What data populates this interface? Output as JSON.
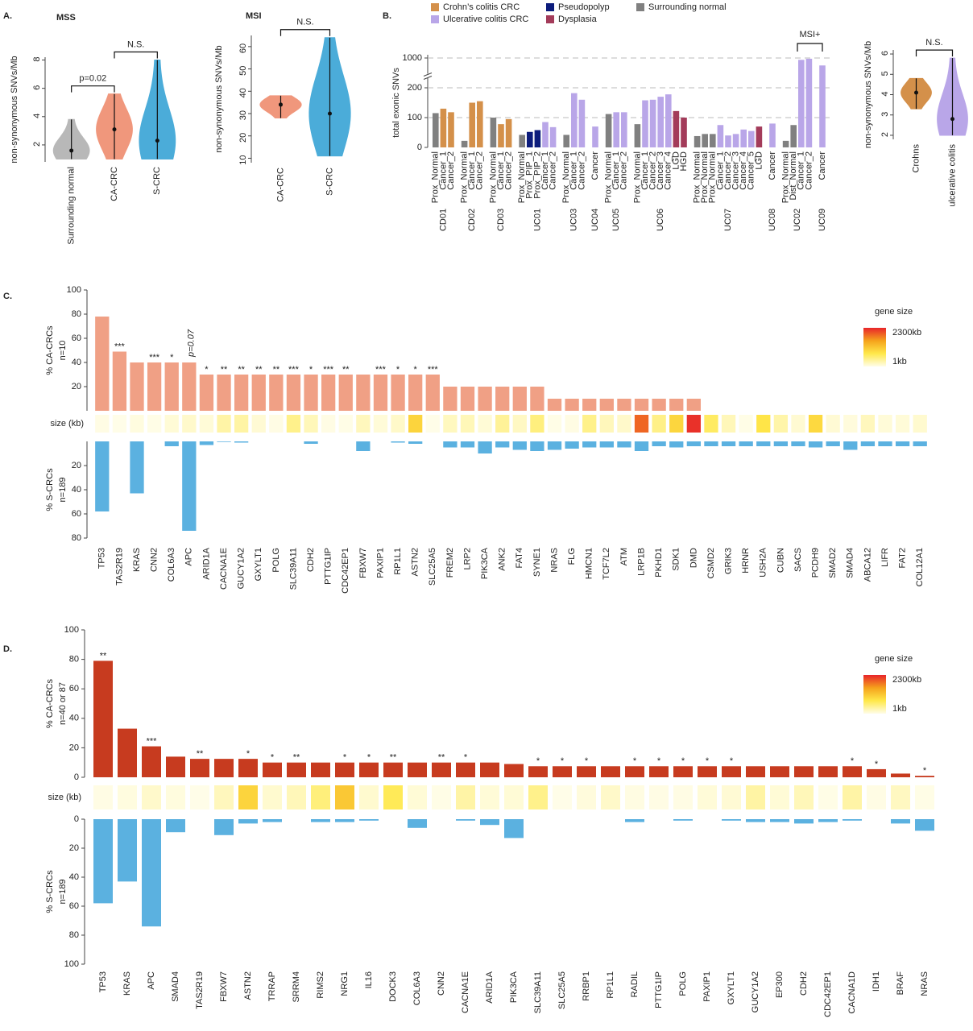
{
  "chart_data": [
    {
      "type": "violin",
      "panel": "A.",
      "title": "MSS",
      "ylabel": "non-synonymous SNVs/Mb",
      "categories": [
        "Surrounding normal",
        "CA-CRC",
        "S-CRC"
      ],
      "colors": [
        "#b8b8b8",
        "#f0977c",
        "#4bacd9"
      ],
      "min": [
        1,
        1,
        1
      ],
      "median": [
        1.6,
        3.1,
        2.3
      ],
      "max": [
        3.8,
        5.6,
        8
      ],
      "ylim": [
        0.8,
        8.2
      ],
      "yticks": [
        2,
        4,
        6,
        8
      ],
      "annotations": [
        {
          "text": "p=0.02",
          "groups": [
            0,
            1
          ]
        },
        {
          "text": "N.S.",
          "groups": [
            1,
            2
          ]
        }
      ]
    },
    {
      "type": "violin",
      "title": "MSI",
      "ylabel": "non-synonymous SNVs/Mb",
      "categories": [
        "CA-CRC",
        "S-CRC"
      ],
      "colors": [
        "#f0977c",
        "#4bacd9"
      ],
      "min": [
        28,
        11
      ],
      "median": [
        34,
        30
      ],
      "max": [
        38,
        64
      ],
      "ylim": [
        8,
        65
      ],
      "yticks": [
        10,
        20,
        30,
        40,
        50,
        60
      ],
      "annotations": [
        {
          "text": "N.S.",
          "groups": [
            0,
            1
          ]
        }
      ]
    },
    {
      "type": "grouped_bar",
      "panel": "B.",
      "ylabel": "total exonic SNVs",
      "ylim": [
        0,
        1000
      ],
      "yticks": [
        0,
        100,
        200,
        1000
      ],
      "axis_break": true,
      "grid": true,
      "legend": [
        {
          "name": "Crohn’s colitis CRC",
          "color": "#d4904a"
        },
        {
          "name": "Ulcerative colitis CRC",
          "color": "#b9a6e8"
        },
        {
          "name": "Pseudopolyp",
          "color": "#0c1c7c"
        },
        {
          "name": "Dysplasia",
          "color": "#a33b5a"
        },
        {
          "name": "Surrounding normal",
          "color": "#808080"
        }
      ],
      "groups": [
        {
          "name": "CD01",
          "samples": [
            "Prox_Normal",
            "Cancer_1",
            "Cancer_2"
          ],
          "values": [
            115,
            130,
            118
          ],
          "colors": [
            "#808080",
            "#d4904a",
            "#d4904a"
          ]
        },
        {
          "name": "CD02",
          "samples": [
            "Prox_Normal",
            "Cancer_1",
            "Cancer_2"
          ],
          "values": [
            22,
            150,
            155
          ],
          "colors": [
            "#808080",
            "#d4904a",
            "#d4904a"
          ]
        },
        {
          "name": "CD03",
          "samples": [
            "Prox_Normal",
            "Cancer_1",
            "Cancer_2"
          ],
          "values": [
            100,
            78,
            95
          ],
          "colors": [
            "#808080",
            "#d4904a",
            "#d4904a"
          ]
        },
        {
          "name": "UC01",
          "samples": [
            "Prox_Normal",
            "Prox_PIP_1",
            "Prox_PIP_2",
            "Cancer_1",
            "Cancer_2"
          ],
          "values": [
            42,
            52,
            58,
            85,
            68
          ],
          "colors": [
            "#808080",
            "#0c1c7c",
            "#0c1c7c",
            "#b9a6e8",
            "#b9a6e8"
          ]
        },
        {
          "name": "UC03",
          "samples": [
            "Prox_Normal",
            "Cancer_1",
            "Cancer_2"
          ],
          "values": [
            42,
            182,
            160
          ],
          "colors": [
            "#808080",
            "#b9a6e8",
            "#b9a6e8"
          ]
        },
        {
          "name": "UC04",
          "samples": [
            "Cancer"
          ],
          "values": [
            70
          ],
          "colors": [
            "#b9a6e8"
          ]
        },
        {
          "name": "UC05",
          "samples": [
            "Prox_Normal",
            "Cancer_1",
            "Cancer_2"
          ],
          "values": [
            112,
            118,
            118
          ],
          "colors": [
            "#808080",
            "#b9a6e8",
            "#b9a6e8"
          ]
        },
        {
          "name": "UC06",
          "samples": [
            "Prox_Normal",
            "Cancer_1",
            "Cancer_2",
            "Cancer_3",
            "Cancer_4",
            "LGD",
            "HGD"
          ],
          "values": [
            78,
            158,
            160,
            170,
            178,
            122,
            100
          ],
          "colors": [
            "#808080",
            "#b9a6e8",
            "#b9a6e8",
            "#b9a6e8",
            "#b9a6e8",
            "#a33b5a",
            "#a33b5a"
          ]
        },
        {
          "name": "UC07",
          "samples": [
            "Prox_Normal",
            "Prox_Normal",
            "Prox_Normal",
            "Cancer_1",
            "Cancer_2",
            "Cancer_3",
            "Cancer_4",
            "Cancer_5",
            "LGD"
          ],
          "values": [
            38,
            45,
            45,
            75,
            40,
            45,
            60,
            55,
            70
          ],
          "colors": [
            "#808080",
            "#808080",
            "#808080",
            "#b9a6e8",
            "#b9a6e8",
            "#b9a6e8",
            "#b9a6e8",
            "#b9a6e8",
            "#a33b5a"
          ]
        },
        {
          "name": "UC08",
          "samples": [
            "Cancer"
          ],
          "values": [
            80
          ],
          "colors": [
            "#b9a6e8"
          ]
        },
        {
          "name": "UC02",
          "samples": [
            "Prox_Normal",
            "Dist_Normal",
            "Cancer_1",
            "Cancer_2"
          ],
          "values": [
            22,
            75,
            950,
            980
          ],
          "colors": [
            "#808080",
            "#808080",
            "#b9a6e8",
            "#b9a6e8"
          ]
        },
        {
          "name": "UC09",
          "samples": [
            "Cancer"
          ],
          "values": [
            800
          ],
          "colors": [
            "#b9a6e8"
          ]
        }
      ],
      "bracket": {
        "text": "MSI+",
        "groups": [
          10,
          11
        ]
      }
    },
    {
      "type": "violin",
      "ylabel": "non-synonymous SNVs/Mb",
      "categories": [
        "Crohns",
        "ulcerative colitis"
      ],
      "colors": [
        "#d4904a",
        "#b9a6e8"
      ],
      "min": [
        3.3,
        2
      ],
      "median": [
        4.1,
        2.8
      ],
      "max": [
        4.8,
        5.8
      ],
      "ylim": [
        1.8,
        6.2
      ],
      "yticks": [
        2,
        3,
        4,
        5,
        6
      ],
      "annotations": [
        {
          "text": "N.S.",
          "groups": [
            0,
            1
          ]
        }
      ]
    },
    {
      "type": "mirror_bar",
      "panel": "C.",
      "size_label": "size (kb)",
      "categories": [
        "TP53",
        "TAS2R19",
        "KRAS",
        "CNN2",
        "COL6A3",
        "APC",
        "ARID1A",
        "CACNA1E",
        "GUCY1A2",
        "GXYLT1",
        "POLG",
        "SLC39A11",
        "CDH2",
        "PTTG1IP",
        "CDC42EP1",
        "FBXW7",
        "PAXIP1",
        "RP1L1",
        "ASTN2",
        "SLC25A5",
        "FREM2",
        "LRP2",
        "PIK3CA",
        "ANK2",
        "FAT4",
        "SYNE1",
        "NRAS",
        "FLG",
        "HMCN1",
        "TCF7L2",
        "ATM",
        "LRP1B",
        "PKHD1",
        "SDK1",
        "DMD",
        "CSMD2",
        "GRIK3",
        "HRNR",
        "USH2A",
        "CUBN",
        "SACS",
        "PCDH9",
        "SMAD2",
        "SMAD4",
        "ABCA12",
        "LIFR",
        "FAT2",
        "COL12A1"
      ],
      "series": [
        {
          "name": "% CA-CRCs",
          "subtitle": "n=10",
          "color": "#f0a085",
          "ylim": [
            0,
            100
          ],
          "yticks": [
            20,
            40,
            60,
            80,
            100
          ],
          "values": [
            78,
            49,
            40,
            40,
            40,
            40,
            30,
            30,
            30,
            30,
            30,
            30,
            30,
            30,
            30,
            30,
            30,
            30,
            30,
            30,
            20,
            20,
            20,
            20,
            20,
            20,
            10,
            10,
            10,
            10,
            10,
            10,
            10,
            10,
            10,
            0,
            0,
            0,
            0,
            0,
            0,
            0,
            0,
            0,
            0,
            0,
            0,
            0
          ],
          "significance": [
            null,
            "***",
            null,
            "***",
            "*",
            "p=0.07",
            "*",
            "**",
            "**",
            "**",
            "**",
            "***",
            "*",
            "***",
            "**",
            null,
            "***",
            "*",
            "*",
            "***",
            null,
            null,
            null,
            null,
            null,
            null,
            null,
            null,
            null,
            null,
            null,
            null,
            null,
            null,
            null,
            null,
            null,
            null,
            null,
            null,
            null,
            null,
            null,
            null,
            null,
            null,
            null,
            null
          ]
        },
        {
          "name": "% S-CRCs",
          "subtitle": "n=189",
          "color": "#5bb1e0",
          "ylim": [
            0,
            80
          ],
          "yticks": [
            20,
            40,
            60,
            80
          ],
          "values": [
            58,
            0,
            43,
            0,
            4,
            74,
            3,
            0.5,
            1,
            0,
            0,
            0,
            2,
            0,
            0,
            8,
            0,
            1,
            2,
            0,
            5,
            5,
            10,
            5,
            7,
            8,
            7,
            6,
            5,
            5,
            5,
            8,
            4,
            5,
            4,
            4,
            4,
            4,
            4,
            4,
            4,
            5,
            4,
            7,
            4,
            4,
            4,
            4
          ]
        }
      ],
      "sizes": [
        20,
        1,
        45,
        10,
        90,
        140,
        85,
        320,
        330,
        100,
        20,
        450,
        230,
        20,
        10,
        210,
        80,
        150,
        990,
        3,
        200,
        235,
        90,
        390,
        180,
        515,
        12,
        25,
        455,
        217,
        146,
        1900,
        470,
        966,
        2220,
        650,
        230,
        10,
        800,
        305,
        110,
        930,
        100,
        60,
        210,
        78,
        80,
        120
      ],
      "size_title": "gene size",
      "size_lim": [
        1,
        2300
      ],
      "size_ticks": [
        {
          "value": 2300,
          "label": "2300kb"
        },
        {
          "value": 1,
          "label": "1kb"
        }
      ],
      "size_colors": [
        "#fffde8",
        "#ffe84a",
        "#f5a31c",
        "#e8242a"
      ]
    },
    {
      "type": "mirror_bar",
      "panel": "D.",
      "size_label": "size (kb)",
      "categories": [
        "TP53",
        "KRAS",
        "APC",
        "SMAD4",
        "TAS2R19",
        "FBXW7",
        "ASTN2",
        "TRRAP",
        "SRRM4",
        "RIMS2",
        "NRG1",
        "IL16",
        "DOCK3",
        "COL6A3",
        "CNN2",
        "CACNA1E",
        "ARID1A",
        "PIK3CA",
        "SLC39A11",
        "SLC25A5",
        "RRBP1",
        "RP1L1",
        "RADIL",
        "PTTG1IP",
        "POLG",
        "PAXIP1",
        "GXYLT1",
        "GUCY1A2",
        "EP300",
        "CDH2",
        "CDC42EP1",
        "CACNA1D",
        "IDH1",
        "BRAF",
        "NRAS"
      ],
      "series": [
        {
          "name": "% CA-CRCs",
          "subtitle": "n=40 or 87",
          "color": "#c73b1f",
          "ylim": [
            0,
            100
          ],
          "yticks": [
            0,
            20,
            40,
            60,
            80,
            100
          ],
          "values": [
            79,
            33,
            21,
            14,
            12.5,
            12.5,
            12.5,
            10,
            10,
            10,
            10,
            10,
            10,
            10,
            10,
            10,
            10,
            9,
            7.5,
            7.5,
            7.5,
            7.5,
            7.5,
            7.5,
            7.5,
            7.5,
            7.5,
            7.5,
            7.5,
            7.5,
            7.5,
            7.5,
            5.5,
            2.5,
            1
          ],
          "significance": [
            "**",
            null,
            "***",
            null,
            "**",
            null,
            "*",
            "*",
            "**",
            null,
            "*",
            "*",
            "**",
            null,
            "**",
            "*",
            null,
            null,
            "*",
            "*",
            "*",
            null,
            "*",
            "*",
            "*",
            "*",
            "*",
            null,
            null,
            null,
            null,
            "*",
            "*",
            null,
            "*"
          ]
        },
        {
          "name": "% S-CRCs",
          "subtitle": "n=189",
          "color": "#5bb1e0",
          "ylim": [
            0,
            100
          ],
          "yticks": [
            0,
            20,
            40,
            60,
            80,
            100
          ],
          "values": [
            58,
            43,
            74,
            9,
            0,
            11,
            3,
            2,
            0,
            2,
            2,
            1,
            0,
            6,
            0,
            1,
            4,
            13,
            0,
            0,
            0,
            0,
            2,
            0,
            1,
            0,
            1,
            2,
            2,
            3,
            2,
            1,
            0,
            3,
            8
          ]
        }
      ],
      "sizes": [
        20,
        45,
        140,
        50,
        1,
        210,
        990,
        120,
        230,
        530,
        1125,
        120,
        700,
        90,
        10,
        320,
        85,
        90,
        450,
        3,
        60,
        150,
        30,
        20,
        20,
        80,
        100,
        330,
        90,
        230,
        10,
        320,
        20,
        190,
        12
      ],
      "size_title": "gene size",
      "size_lim": [
        1,
        2300
      ],
      "size_ticks": [
        {
          "value": 2300,
          "label": "2300kb"
        },
        {
          "value": 1,
          "label": "1kb"
        }
      ],
      "size_colors": [
        "#fffde8",
        "#ffe84a",
        "#f5a31c",
        "#e8242a"
      ]
    }
  ]
}
